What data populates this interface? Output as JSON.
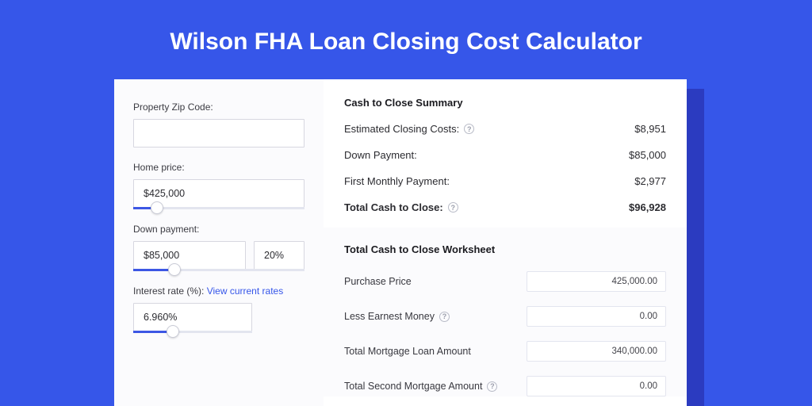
{
  "colors": {
    "page_bg": "#3656e9",
    "card_shadow": "#2b3bc0",
    "card_bg": "#ffffff",
    "left_bg": "#fbfbfd",
    "input_border": "#d7d7e0",
    "slider_track": "#e3e5ef",
    "slider_fill": "#3d57e4",
    "link": "#3656e9",
    "help_border": "#b8bbc7"
  },
  "title": "Wilson FHA Loan Closing Cost Calculator",
  "left": {
    "zip": {
      "label": "Property Zip Code:",
      "value": ""
    },
    "home_price": {
      "label": "Home price:",
      "value": "$425,000",
      "slider_pct": 14
    },
    "down_payment": {
      "label": "Down payment:",
      "value": "$85,000",
      "pct": "20%",
      "slider_pct": 24
    },
    "interest": {
      "label": "Interest rate (%):",
      "link_text": "View current rates",
      "value": "6.960%",
      "slider_pct": 33
    }
  },
  "summary": {
    "title": "Cash to Close Summary",
    "rows": [
      {
        "label": "Estimated Closing Costs:",
        "help": true,
        "value": "$8,951",
        "bold": false
      },
      {
        "label": "Down Payment:",
        "help": false,
        "value": "$85,000",
        "bold": false
      },
      {
        "label": "First Monthly Payment:",
        "help": false,
        "value": "$2,977",
        "bold": false
      },
      {
        "label": "Total Cash to Close:",
        "help": true,
        "value": "$96,928",
        "bold": true
      }
    ]
  },
  "worksheet": {
    "title": "Total Cash to Close Worksheet",
    "rows": [
      {
        "label": "Purchase Price",
        "help": false,
        "value": "425,000.00"
      },
      {
        "label": "Less Earnest Money",
        "help": true,
        "value": "0.00"
      },
      {
        "label": "Total Mortgage Loan Amount",
        "help": false,
        "value": "340,000.00"
      },
      {
        "label": "Total Second Mortgage Amount",
        "help": true,
        "value": "0.00"
      }
    ]
  }
}
